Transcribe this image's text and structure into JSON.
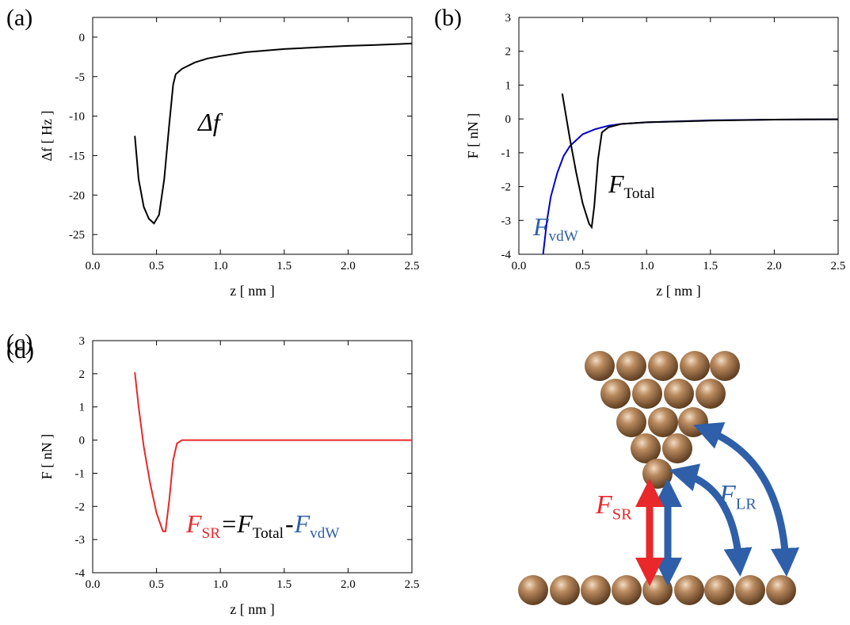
{
  "chart_data": [
    {
      "type": "line",
      "panel": "(a)",
      "xlabel": "z [ nm ]",
      "ylabel": "Δf [ Hz ]",
      "xlim": [
        0,
        2.5
      ],
      "ylim": [
        -27.5,
        2.5
      ],
      "xticks": [
        {
          "value": 0,
          "label": "0.0"
        },
        0.5,
        {
          "value": 1,
          "label": "1.0"
        },
        1.5,
        {
          "value": 2,
          "label": "2.0"
        },
        2.5
      ],
      "yticks": [
        -25,
        -20,
        -15,
        -10,
        -5,
        0
      ],
      "series": [
        {
          "color": "#000000",
          "x": [
            0.33,
            0.36,
            0.4,
            0.44,
            0.48,
            0.52,
            0.56,
            0.6,
            0.63,
            0.65,
            0.7,
            0.8,
            0.9,
            1.0,
            1.2,
            1.5,
            1.8,
            2.0,
            2.2,
            2.5
          ],
          "values": [
            -12.5,
            -18,
            -21.5,
            -23,
            -23.6,
            -22.5,
            -18,
            -11,
            -6,
            -4.7,
            -4.0,
            -3.2,
            -2.7,
            -2.4,
            -1.9,
            -1.5,
            -1.25,
            -1.1,
            -1.0,
            -0.8
          ]
        }
      ],
      "annotations": [
        {
          "text": "Δf",
          "color": "#000000"
        }
      ]
    },
    {
      "type": "line",
      "panel": "(b)",
      "xlabel": "z [ nm ]",
      "ylabel": "F [ nN ]",
      "xlim": [
        0,
        2.5
      ],
      "ylim": [
        -4,
        3
      ],
      "xticks": [
        {
          "value": 0,
          "label": "0.0"
        },
        0.5,
        {
          "value": 1,
          "label": "1.0"
        },
        1.5,
        {
          "value": 2,
          "label": "2.0"
        },
        2.5
      ],
      "yticks": [
        -4,
        -3,
        -2,
        -1,
        0,
        1,
        2,
        3
      ],
      "series": [
        {
          "color": "#0000cc",
          "x": [
            0.19,
            0.22,
            0.25,
            0.3,
            0.35,
            0.4,
            0.5,
            0.6,
            0.7,
            0.8,
            1.0,
            1.5,
            2.0,
            2.5
          ],
          "values": [
            -4,
            -3,
            -2.3,
            -1.6,
            -1.1,
            -0.8,
            -0.45,
            -0.3,
            -0.2,
            -0.15,
            -0.1,
            -0.04,
            -0.02,
            -0.01
          ]
        },
        {
          "color": "#000000",
          "x": [
            0.34,
            0.36,
            0.4,
            0.45,
            0.5,
            0.55,
            0.57,
            0.59,
            0.62,
            0.65,
            0.7,
            0.8,
            1.0,
            1.5,
            2.0,
            2.5
          ],
          "values": [
            0.75,
            0.3,
            -0.6,
            -1.6,
            -2.5,
            -3.1,
            -3.2,
            -2.6,
            -1.2,
            -0.4,
            -0.25,
            -0.15,
            -0.1,
            -0.05,
            -0.02,
            -0.01
          ]
        }
      ],
      "annotations": [
        {
          "text": "F",
          "sub": "Total",
          "color": "#000000"
        },
        {
          "text": "F",
          "sub": "vdW",
          "color": "#2e5fa8"
        }
      ]
    },
    {
      "type": "line",
      "panel": "(c)",
      "xlabel": "z [ nm ]",
      "ylabel": "F [ nN ]",
      "xlim": [
        0,
        2.5
      ],
      "ylim": [
        -4,
        3
      ],
      "xticks": [
        {
          "value": 0,
          "label": "0.0"
        },
        0.5,
        {
          "value": 1,
          "label": "1.0"
        },
        1.5,
        {
          "value": 2,
          "label": "2.0"
        },
        2.5
      ],
      "yticks": [
        -4,
        -3,
        -2,
        -1,
        0,
        1,
        2,
        3
      ],
      "series": [
        {
          "color": "#e8282b",
          "x": [
            0.33,
            0.36,
            0.4,
            0.45,
            0.5,
            0.55,
            0.57,
            0.6,
            0.63,
            0.66,
            0.7,
            1.0,
            1.5,
            2.0,
            2.5
          ],
          "values": [
            2.05,
            1.0,
            -0.2,
            -1.3,
            -2.2,
            -2.75,
            -2.75,
            -1.8,
            -0.6,
            -0.1,
            0,
            0,
            0,
            0,
            0
          ]
        }
      ],
      "annotations": [
        {
          "text": "F",
          "sub": "SR",
          "color": "#e8282b"
        },
        {
          "text": "=",
          "color": "#000000"
        },
        {
          "text": "F",
          "sub": "Total",
          "color": "#000000"
        },
        {
          "text": "-",
          "color": "#000000"
        },
        {
          "text": "F",
          "sub": "vdW",
          "color": "#2e5fa8"
        }
      ]
    }
  ],
  "diagram": {
    "panel": "(d)",
    "labels": [
      {
        "text": "F",
        "sub": "SR",
        "color": "#e8282b"
      },
      {
        "text": "F",
        "sub": "LR",
        "color": "#2e5fa8"
      }
    ]
  }
}
